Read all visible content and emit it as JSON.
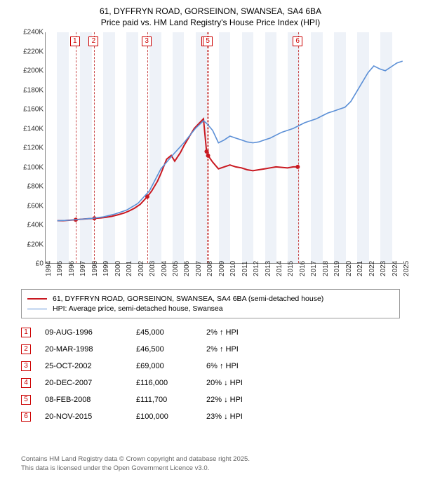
{
  "title_line1": "61, DYFFRYN ROAD, GORSEINON, SWANSEA, SA4 6BA",
  "title_line2": "Price paid vs. HM Land Registry's House Price Index (HPI)",
  "chart": {
    "type": "line",
    "background_color": "#ffffff",
    "x_start_year": 1994,
    "x_end_year": 2025,
    "xtick_step": 1,
    "ylim": [
      0,
      240000
    ],
    "ytick_step": 20000,
    "ytick_labels": [
      "£0",
      "£20K",
      "£40K",
      "£60K",
      "£80K",
      "£100K",
      "£120K",
      "£140K",
      "£160K",
      "£180K",
      "£200K",
      "£220K",
      "£240K"
    ],
    "band_color": "#e2e9f3",
    "band_opacity": 0.6,
    "dash_color": "#c94a4a",
    "series": [
      {
        "name": "property",
        "label": "61, DYFFRYN ROAD, GORSEINON, SWANSEA, SA4 6BA (semi-detached house)",
        "color": "#c91820",
        "line_width": 2,
        "points": [
          [
            1995.0,
            44000
          ],
          [
            1995.5,
            44000
          ],
          [
            1996.0,
            44500
          ],
          [
            1996.6,
            45000
          ],
          [
            1997.0,
            45500
          ],
          [
            1997.5,
            46000
          ],
          [
            1998.22,
            46500
          ],
          [
            1998.8,
            47000
          ],
          [
            1999.2,
            47500
          ],
          [
            1999.7,
            48500
          ],
          [
            2000.2,
            50000
          ],
          [
            2000.8,
            52000
          ],
          [
            2001.2,
            54000
          ],
          [
            2001.7,
            57000
          ],
          [
            2002.2,
            61000
          ],
          [
            2002.82,
            69000
          ],
          [
            2003.2,
            75000
          ],
          [
            2003.7,
            85000
          ],
          [
            2004.0,
            93000
          ],
          [
            2004.5,
            108000
          ],
          [
            2004.9,
            112000
          ],
          [
            2005.2,
            106000
          ],
          [
            2005.7,
            115000
          ],
          [
            2006.0,
            122000
          ],
          [
            2006.5,
            132000
          ],
          [
            2006.9,
            140000
          ],
          [
            2007.3,
            145000
          ],
          [
            2007.7,
            150000
          ],
          [
            2007.97,
            116000
          ],
          [
            2008.1,
            111700
          ],
          [
            2008.5,
            105000
          ],
          [
            2009.0,
            98000
          ],
          [
            2009.5,
            100000
          ],
          [
            2010.0,
            102000
          ],
          [
            2010.5,
            100000
          ],
          [
            2011.0,
            99000
          ],
          [
            2011.5,
            97000
          ],
          [
            2012.0,
            96000
          ],
          [
            2012.5,
            97000
          ],
          [
            2013.0,
            98000
          ],
          [
            2013.5,
            99000
          ],
          [
            2014.0,
            100000
          ],
          [
            2014.5,
            99500
          ],
          [
            2015.0,
            99000
          ],
          [
            2015.5,
            100000
          ],
          [
            2015.89,
            100000
          ]
        ],
        "dots": [
          [
            1996.6,
            45000
          ],
          [
            1998.22,
            46500
          ],
          [
            2002.82,
            69000
          ],
          [
            2007.97,
            116000
          ],
          [
            2008.1,
            111700
          ],
          [
            2015.89,
            100000
          ]
        ]
      },
      {
        "name": "hpi",
        "label": "HPI: Average price, semi-detached house, Swansea",
        "color": "#5b8fd6",
        "line_width": 1.6,
        "points": [
          [
            1995.0,
            44000
          ],
          [
            1996.0,
            44500
          ],
          [
            1997.0,
            45500
          ],
          [
            1998.0,
            46500
          ],
          [
            1999.0,
            48000
          ],
          [
            2000.0,
            51000
          ],
          [
            2001.0,
            55000
          ],
          [
            2002.0,
            62000
          ],
          [
            2003.0,
            75000
          ],
          [
            2004.0,
            98000
          ],
          [
            2005.0,
            112000
          ],
          [
            2006.0,
            125000
          ],
          [
            2007.0,
            140000
          ],
          [
            2007.7,
            148000
          ],
          [
            2008.0,
            145000
          ],
          [
            2008.5,
            138000
          ],
          [
            2009.0,
            125000
          ],
          [
            2009.5,
            128000
          ],
          [
            2010.0,
            132000
          ],
          [
            2010.5,
            130000
          ],
          [
            2011.0,
            128000
          ],
          [
            2011.5,
            126000
          ],
          [
            2012.0,
            125000
          ],
          [
            2012.5,
            126000
          ],
          [
            2013.0,
            128000
          ],
          [
            2013.5,
            130000
          ],
          [
            2014.0,
            133000
          ],
          [
            2014.5,
            136000
          ],
          [
            2015.0,
            138000
          ],
          [
            2015.5,
            140000
          ],
          [
            2016.0,
            143000
          ],
          [
            2016.5,
            146000
          ],
          [
            2017.0,
            148000
          ],
          [
            2017.5,
            150000
          ],
          [
            2018.0,
            153000
          ],
          [
            2018.5,
            156000
          ],
          [
            2019.0,
            158000
          ],
          [
            2019.5,
            160000
          ],
          [
            2020.0,
            162000
          ],
          [
            2020.5,
            168000
          ],
          [
            2021.0,
            178000
          ],
          [
            2021.5,
            188000
          ],
          [
            2022.0,
            198000
          ],
          [
            2022.5,
            205000
          ],
          [
            2023.0,
            202000
          ],
          [
            2023.5,
            200000
          ],
          [
            2024.0,
            204000
          ],
          [
            2024.5,
            208000
          ],
          [
            2025.0,
            210000
          ]
        ]
      }
    ],
    "transactions": [
      {
        "n": "1",
        "year": 1996.6,
        "date": "09-AUG-1996",
        "price": "£45,000",
        "delta": "2%",
        "arrow": "↑",
        "suffix": "HPI"
      },
      {
        "n": "2",
        "year": 1998.22,
        "date": "20-MAR-1998",
        "price": "£46,500",
        "delta": "2%",
        "arrow": "↑",
        "suffix": "HPI"
      },
      {
        "n": "3",
        "year": 2002.82,
        "date": "25-OCT-2002",
        "price": "£69,000",
        "delta": "6%",
        "arrow": "↑",
        "suffix": "HPI"
      },
      {
        "n": "4",
        "year": 2007.97,
        "date": "20-DEC-2007",
        "price": "£116,000",
        "delta": "20%",
        "arrow": "↓",
        "suffix": "HPI"
      },
      {
        "n": "5",
        "year": 2008.11,
        "date": "08-FEB-2008",
        "price": "£111,700",
        "delta": "22%",
        "arrow": "↓",
        "suffix": "HPI"
      },
      {
        "n": "6",
        "year": 2015.89,
        "date": "20-NOV-2015",
        "price": "£100,000",
        "delta": "23%",
        "arrow": "↓",
        "suffix": "HPI"
      }
    ]
  },
  "footer_line1": "Contains HM Land Registry data © Crown copyright and database right 2025.",
  "footer_line2": "This data is licensed under the Open Government Licence v3.0."
}
